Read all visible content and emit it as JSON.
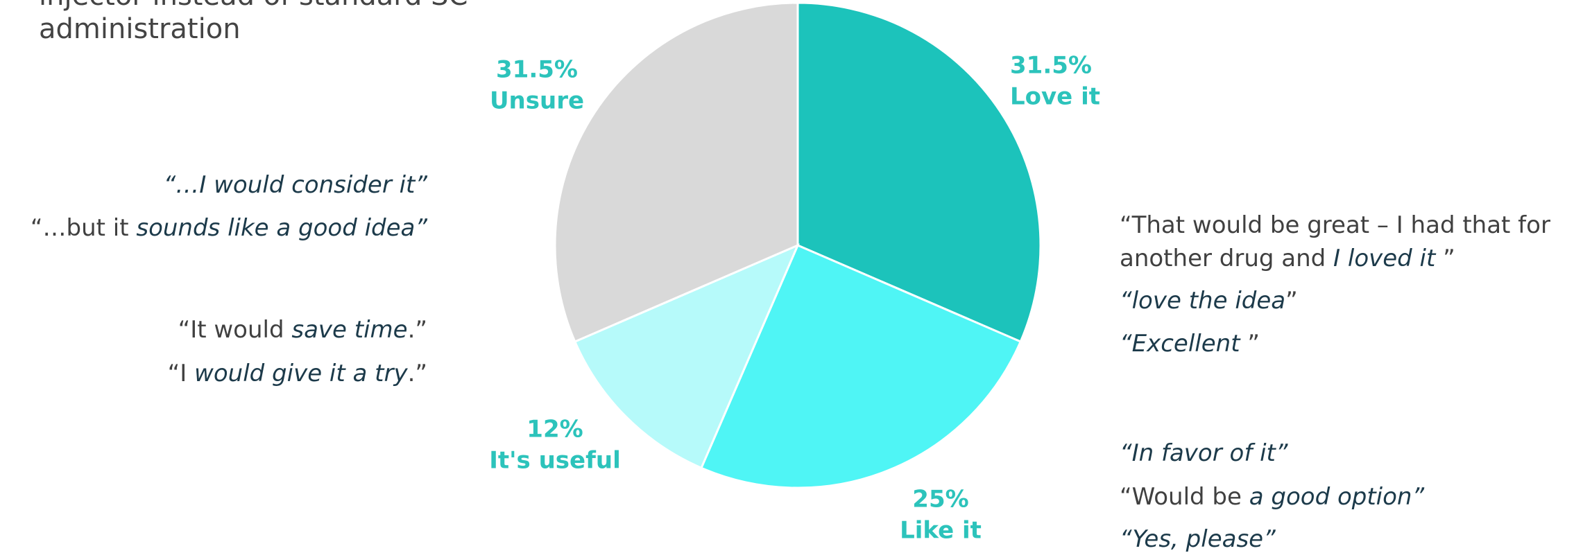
{
  "title_lines": [
    "injector instead of standard SC",
    "administration"
  ],
  "chart_data": {
    "type": "pie",
    "categories": [
      "Love it",
      "Like it",
      "It's useful",
      "Unsure"
    ],
    "values": [
      31.5,
      25,
      12,
      31.5
    ],
    "value_labels": [
      "31.5%",
      "25%",
      "12%",
      "31.5%"
    ],
    "colors": [
      "#1cc3bb",
      "#4ff5f5",
      "#b6fafa",
      "#d9d9d9"
    ]
  },
  "quotes_left": [
    [
      [
        {
          "emph": "“…I would consider it”"
        }
      ],
      [
        {
          "plain": "“…but it "
        },
        {
          "emph": "sounds like a good idea”"
        }
      ]
    ],
    [
      [
        {
          "plain": "“It would "
        },
        {
          "emph": "save time"
        },
        {
          "plain": ".”"
        }
      ],
      [
        {
          "plain": "“I "
        },
        {
          "emph": "would give it a try"
        },
        {
          "plain": ".”"
        }
      ]
    ]
  ],
  "quotes_right": [
    [
      [
        {
          "plain": "“That would be great – I had that for"
        }
      ],
      [
        {
          "plain": "another drug and "
        },
        {
          "emph": "I loved it"
        },
        {
          "plain": " ”"
        }
      ],
      [
        {
          "emph": "“love the idea"
        },
        {
          "plain": "”"
        }
      ],
      [
        {
          "emph": "“Excellent"
        },
        {
          "plain": " ”"
        }
      ]
    ],
    [
      [
        {
          "emph": "“In favor of it”"
        }
      ],
      [
        {
          "plain": "“Would be "
        },
        {
          "emph": "a good option”"
        }
      ],
      [
        {
          "emph": "“Yes, please”"
        }
      ]
    ]
  ]
}
